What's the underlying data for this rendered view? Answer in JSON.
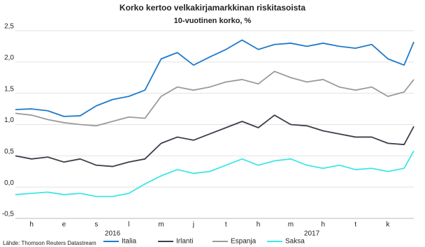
{
  "chart_data": {
    "type": "line",
    "title": "Korko kertoo velkakirjamarkkinan riskitasoista",
    "subtitle": "10-vuotinen korko, %",
    "source": "Lähde: Thomson Reuters Datastream",
    "x": [
      0,
      0.5,
      1,
      1.5,
      2,
      2.5,
      3,
      3.5,
      4,
      4.5,
      5,
      5.5,
      6,
      6.5,
      7,
      7.5,
      8,
      8.5,
      9,
      9.5,
      10,
      10.5,
      11,
      11.5,
      12,
      12.3
    ],
    "xlim": [
      0,
      12.3
    ],
    "xticks": [
      {
        "value": 0.5,
        "label": "h"
      },
      {
        "value": 1.5,
        "label": "e"
      },
      {
        "value": 2.5,
        "label": "s"
      },
      {
        "value": 3.5,
        "label": "l"
      },
      {
        "value": 4.5,
        "label": "m"
      },
      {
        "value": 5.5,
        "label": "j"
      },
      {
        "value": 6.5,
        "label": "t"
      },
      {
        "value": 7.5,
        "label": "h"
      },
      {
        "value": 8.5,
        "label": "m"
      },
      {
        "value": 9.5,
        "label": "h"
      },
      {
        "value": 10.5,
        "label": "t"
      },
      {
        "value": 11.5,
        "label": "k"
      }
    ],
    "year_labels": [
      {
        "value": 3,
        "label": "2016"
      },
      {
        "value": 9.15,
        "label": "2017"
      }
    ],
    "ylim": [
      -0.5,
      2.5
    ],
    "yticks": [
      {
        "value": -0.5,
        "label": "-0,5"
      },
      {
        "value": 0,
        "label": "0,0"
      },
      {
        "value": 0.5,
        "label": "0,5"
      },
      {
        "value": 1,
        "label": "1,0"
      },
      {
        "value": 1.5,
        "label": "1,5"
      },
      {
        "value": 2,
        "label": "2,0"
      },
      {
        "value": 2.5,
        "label": "2,5"
      }
    ],
    "grid": true,
    "legend": "bottom",
    "series": [
      {
        "name": "Italia",
        "color": "#1f7acb",
        "values": [
          1.24,
          1.25,
          1.22,
          1.13,
          1.14,
          1.3,
          1.4,
          1.45,
          1.55,
          2.05,
          2.15,
          1.95,
          2.08,
          2.2,
          2.35,
          2.2,
          2.28,
          2.3,
          2.25,
          2.3,
          2.25,
          2.22,
          2.28,
          2.05,
          1.95,
          2.32
        ]
      },
      {
        "name": "Irlanti",
        "color": "#3d3d4a",
        "values": [
          0.5,
          0.45,
          0.48,
          0.4,
          0.45,
          0.35,
          0.33,
          0.4,
          0.45,
          0.7,
          0.8,
          0.75,
          0.85,
          0.95,
          1.05,
          0.95,
          1.15,
          1.0,
          0.98,
          0.9,
          0.85,
          0.8,
          0.8,
          0.7,
          0.68,
          0.97
        ]
      },
      {
        "name": "Espanja",
        "color": "#9a9a9a",
        "values": [
          1.18,
          1.15,
          1.08,
          1.03,
          1.0,
          0.98,
          1.05,
          1.12,
          1.1,
          1.45,
          1.6,
          1.55,
          1.6,
          1.68,
          1.72,
          1.65,
          1.85,
          1.75,
          1.68,
          1.72,
          1.6,
          1.55,
          1.6,
          1.45,
          1.52,
          1.72
        ]
      },
      {
        "name": "Saksa",
        "color": "#3ee6e6",
        "values": [
          -0.12,
          -0.1,
          -0.08,
          -0.12,
          -0.1,
          -0.15,
          -0.15,
          -0.1,
          0.05,
          0.18,
          0.28,
          0.22,
          0.25,
          0.35,
          0.45,
          0.35,
          0.42,
          0.45,
          0.35,
          0.3,
          0.35,
          0.28,
          0.3,
          0.25,
          0.3,
          0.58
        ]
      }
    ]
  }
}
